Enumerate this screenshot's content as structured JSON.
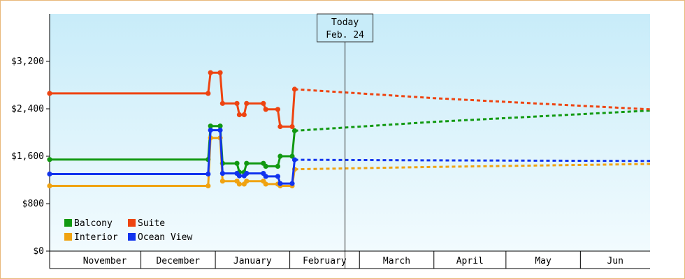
{
  "chart_data": {
    "type": "line",
    "title": "",
    "xlabel": "",
    "ylabel": "",
    "ylim": [
      0,
      4000
    ],
    "xlim": [
      "2023-10-24",
      "2024-06-30"
    ],
    "y_ticks": [
      {
        "value": 0,
        "label": "$0"
      },
      {
        "value": 800,
        "label": "$800"
      },
      {
        "value": 1600,
        "label": "$1,600"
      },
      {
        "value": 2400,
        "label": "$2,400"
      },
      {
        "value": 3200,
        "label": "$3,200"
      }
    ],
    "months": [
      {
        "label": "November",
        "start": "2023-11-01",
        "end": "2023-12-01"
      },
      {
        "label": "December",
        "start": "2023-12-01",
        "end": "2024-01-01"
      },
      {
        "label": "January",
        "start": "2024-01-01",
        "end": "2024-02-01"
      },
      {
        "label": "February",
        "start": "2024-02-01",
        "end": "2024-03-01"
      },
      {
        "label": "March",
        "start": "2024-03-01",
        "end": "2024-04-01"
      },
      {
        "label": "April",
        "start": "2024-04-01",
        "end": "2024-05-01"
      },
      {
        "label": "May",
        "start": "2024-05-01",
        "end": "2024-06-01"
      },
      {
        "label": "Jun",
        "start": "2024-06-01",
        "end": "2024-06-30"
      }
    ],
    "today": {
      "label": "Today",
      "date_label": "Feb. 24",
      "date": "2024-02-24"
    },
    "legend": {
      "placement": "bottom-left"
    },
    "grid": false,
    "series": [
      {
        "name": "Balcony",
        "color": "#119911",
        "points": [
          [
            "2023-10-24",
            1545
          ],
          [
            "2023-12-29",
            1545
          ],
          [
            "2023-12-30",
            2110
          ],
          [
            "2024-01-03",
            2110
          ],
          [
            "2024-01-04",
            1480
          ],
          [
            "2024-01-10",
            1480
          ],
          [
            "2024-01-11",
            1330
          ],
          [
            "2024-01-13",
            1330
          ],
          [
            "2024-01-14",
            1480
          ],
          [
            "2024-01-21",
            1480
          ],
          [
            "2024-01-22",
            1430
          ],
          [
            "2024-01-27",
            1430
          ],
          [
            "2024-01-28",
            1600
          ],
          [
            "2024-02-02",
            1600
          ],
          [
            "2024-02-03",
            2030
          ]
        ],
        "forecast": [
          [
            "2024-02-03",
            2030
          ],
          [
            "2024-04-01",
            2180
          ],
          [
            "2024-06-30",
            2370
          ]
        ]
      },
      {
        "name": "Suite",
        "color": "#ee4411",
        "points": [
          [
            "2023-10-24",
            2660
          ],
          [
            "2023-12-29",
            2660
          ],
          [
            "2023-12-30",
            3010
          ],
          [
            "2024-01-03",
            3010
          ],
          [
            "2024-01-04",
            2490
          ],
          [
            "2024-01-10",
            2490
          ],
          [
            "2024-01-11",
            2300
          ],
          [
            "2024-01-13",
            2300
          ],
          [
            "2024-01-14",
            2490
          ],
          [
            "2024-01-21",
            2490
          ],
          [
            "2024-01-22",
            2390
          ],
          [
            "2024-01-27",
            2390
          ],
          [
            "2024-01-28",
            2100
          ],
          [
            "2024-02-02",
            2100
          ],
          [
            "2024-02-03",
            2730
          ]
        ],
        "forecast": [
          [
            "2024-02-03",
            2730
          ],
          [
            "2024-04-01",
            2580
          ],
          [
            "2024-06-30",
            2390
          ]
        ]
      },
      {
        "name": "Interior",
        "color": "#f0a311",
        "points": [
          [
            "2023-10-24",
            1100
          ],
          [
            "2023-12-29",
            1100
          ],
          [
            "2023-12-30",
            1910
          ],
          [
            "2024-01-03",
            1910
          ],
          [
            "2024-01-04",
            1180
          ],
          [
            "2024-01-10",
            1180
          ],
          [
            "2024-01-11",
            1130
          ],
          [
            "2024-01-13",
            1130
          ],
          [
            "2024-01-14",
            1180
          ],
          [
            "2024-01-21",
            1180
          ],
          [
            "2024-01-22",
            1130
          ],
          [
            "2024-01-27",
            1130
          ],
          [
            "2024-01-28",
            1100
          ],
          [
            "2024-02-02",
            1100
          ],
          [
            "2024-02-03",
            1380
          ]
        ],
        "forecast": [
          [
            "2024-02-03",
            1380
          ],
          [
            "2024-04-01",
            1420
          ],
          [
            "2024-06-30",
            1470
          ]
        ]
      },
      {
        "name": "Ocean View",
        "color": "#1133ee",
        "points": [
          [
            "2023-10-24",
            1300
          ],
          [
            "2023-12-29",
            1300
          ],
          [
            "2023-12-30",
            2040
          ],
          [
            "2024-01-03",
            2040
          ],
          [
            "2024-01-04",
            1310
          ],
          [
            "2024-01-10",
            1310
          ],
          [
            "2024-01-11",
            1270
          ],
          [
            "2024-01-13",
            1270
          ],
          [
            "2024-01-14",
            1310
          ],
          [
            "2024-01-21",
            1310
          ],
          [
            "2024-01-22",
            1260
          ],
          [
            "2024-01-27",
            1260
          ],
          [
            "2024-01-28",
            1140
          ],
          [
            "2024-02-02",
            1140
          ],
          [
            "2024-02-03",
            1540
          ]
        ],
        "forecast": [
          [
            "2024-02-03",
            1540
          ],
          [
            "2024-04-01",
            1530
          ],
          [
            "2024-06-30",
            1520
          ]
        ]
      }
    ]
  }
}
